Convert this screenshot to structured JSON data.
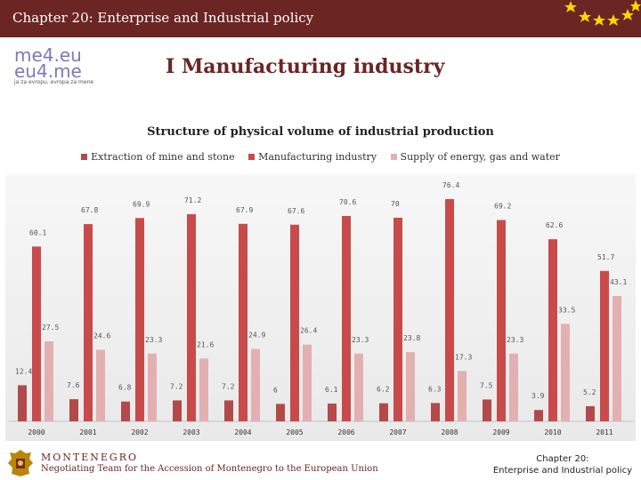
{
  "header": {
    "title": "Chapter 20: Enterprise and Industrial policy"
  },
  "logo": {
    "line1": "me4.eu",
    "line2": "eu4.me",
    "tagline": "ja za evropu, evropa za mene"
  },
  "section": {
    "title": "I   Manufacturing industry"
  },
  "footer": {
    "country": "MONTENEGRO",
    "team": "Negotiating Team for the Accession of Montenegro to the European Union",
    "chapter_line1": "Chapter 20:",
    "chapter_line2": "Enterprise and Industrial policy"
  },
  "colors": {
    "header": "#6b2523",
    "mine": "#b34a4a",
    "manufacturing": "#c94a4a",
    "energy": "#e3b0b2"
  },
  "chart_data": {
    "type": "bar",
    "title": "Structure of physical volume of industrial production",
    "categories": [
      "2000",
      "2001",
      "2002",
      "2003",
      "2004",
      "2005",
      "2006",
      "2007",
      "2008",
      "2009",
      "2010",
      "2011"
    ],
    "series": [
      {
        "name": "Extraction of mine and stone",
        "values": [
          12.4,
          7.6,
          6.8,
          7.2,
          7.2,
          6,
          6.1,
          6.2,
          6.3,
          7.5,
          3.9,
          5.2
        ]
      },
      {
        "name": "Manufacturing industry",
        "values": [
          60.1,
          67.8,
          69.9,
          71.2,
          67.9,
          67.6,
          70.6,
          70,
          76.4,
          69.2,
          62.6,
          51.7
        ]
      },
      {
        "name": "Supply of energy, gas and water",
        "values": [
          27.5,
          24.6,
          23.3,
          21.6,
          24.9,
          26.4,
          23.3,
          23.8,
          17.3,
          23.3,
          33.5,
          43.1
        ]
      }
    ],
    "ylim": [
      0,
      80
    ],
    "grid": false,
    "legend": "top"
  }
}
